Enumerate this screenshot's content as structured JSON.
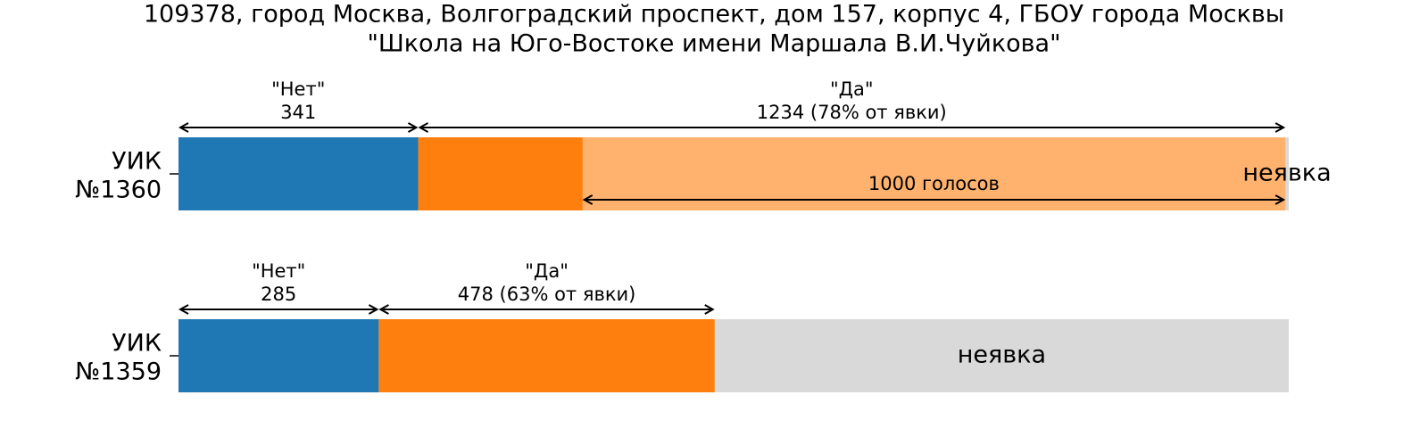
{
  "chart_data": {
    "type": "bar",
    "orientation": "horizontal-stacked",
    "title_lines": [
      "109378, город Москва, Волгоградский проспект, дом 157, корпус 4, ГБОУ города Москвы",
      "\"Школа на Юго-Востоке имени Маршала В.И.Чуйкова\""
    ],
    "xlim": [
      0,
      1580
    ],
    "colors": {
      "no": "#1f77b4",
      "yes": "#ff7f0e",
      "yes_light": "#ffb26e",
      "absent": "#d9d9d9"
    },
    "rows": [
      {
        "label_lines": [
          "УИК",
          "№1360"
        ],
        "no": 341,
        "yes": 1234,
        "absent_end": 1580,
        "no_label_lines": [
          "\"Нет\"",
          "341"
        ],
        "yes_label_lines": [
          "\"Да\"",
          "1234 (78% от явки)"
        ],
        "absent_label": "неявка",
        "highlight": {
          "from": 575,
          "to": 1575,
          "label": "1000 голосов"
        }
      },
      {
        "label_lines": [
          "УИК",
          "№1359"
        ],
        "no": 285,
        "yes": 478,
        "absent_end": 1580,
        "no_label_lines": [
          "\"Нет\"",
          "285"
        ],
        "yes_label_lines": [
          "\"Да\"",
          "478 (63% от явки)"
        ],
        "absent_label": "неявка",
        "highlight": null
      }
    ]
  }
}
